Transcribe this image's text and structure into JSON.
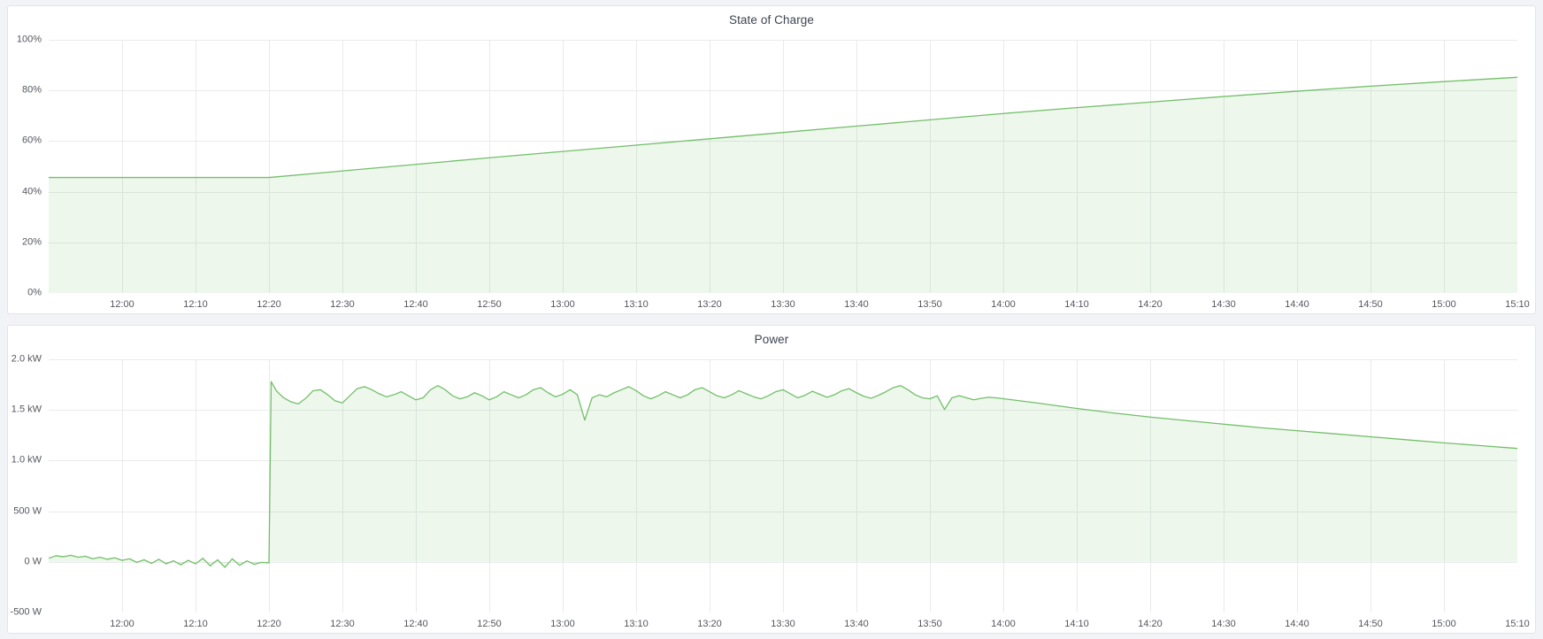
{
  "page": {
    "background_color": "#f1f3f6",
    "panel_background": "#ffffff",
    "accent_color": "#73bf69"
  },
  "chart_data": [
    {
      "type": "area",
      "title": "State of Charge",
      "xlabel": "",
      "ylabel": "",
      "unit": "percent",
      "grid": true,
      "legend_position": "none",
      "line_color": "#73bf69",
      "fill_color": "rgba(115,191,105,0.13)",
      "x_axis": {
        "start_time": "11:50",
        "end_time": "15:10",
        "unit": "minutes since 11:50"
      },
      "xlim": [
        0,
        200
      ],
      "ylim": [
        0,
        100
      ],
      "x_ticks": [
        {
          "minute": 10,
          "label": "12:00"
        },
        {
          "minute": 20,
          "label": "12:10"
        },
        {
          "minute": 30,
          "label": "12:20"
        },
        {
          "minute": 40,
          "label": "12:30"
        },
        {
          "minute": 50,
          "label": "12:40"
        },
        {
          "minute": 60,
          "label": "12:50"
        },
        {
          "minute": 70,
          "label": "13:00"
        },
        {
          "minute": 80,
          "label": "13:10"
        },
        {
          "minute": 90,
          "label": "13:20"
        },
        {
          "minute": 100,
          "label": "13:30"
        },
        {
          "minute": 110,
          "label": "13:40"
        },
        {
          "minute": 120,
          "label": "13:50"
        },
        {
          "minute": 130,
          "label": "14:00"
        },
        {
          "minute": 140,
          "label": "14:10"
        },
        {
          "minute": 150,
          "label": "14:20"
        },
        {
          "minute": 160,
          "label": "14:30"
        },
        {
          "minute": 170,
          "label": "14:40"
        },
        {
          "minute": 180,
          "label": "14:50"
        },
        {
          "minute": 190,
          "label": "15:00"
        },
        {
          "minute": 200,
          "label": "15:10"
        }
      ],
      "y_ticks": [
        {
          "value": 0,
          "label": "0%"
        },
        {
          "value": 20,
          "label": "20%"
        },
        {
          "value": 40,
          "label": "40%"
        },
        {
          "value": 60,
          "label": "60%"
        },
        {
          "value": 80,
          "label": "80%"
        },
        {
          "value": 100,
          "label": "100%"
        }
      ],
      "series": [
        {
          "name": "State of Charge",
          "points": [
            [
              0,
              45.6
            ],
            [
              30,
              45.6
            ],
            [
              40,
              48.2
            ],
            [
              50,
              50.8
            ],
            [
              60,
              53.4
            ],
            [
              70,
              55.9
            ],
            [
              80,
              58.4
            ],
            [
              90,
              60.9
            ],
            [
              100,
              63.4
            ],
            [
              110,
              65.9
            ],
            [
              120,
              68.4
            ],
            [
              130,
              70.9
            ],
            [
              140,
              73.2
            ],
            [
              150,
              75.4
            ],
            [
              160,
              77.6
            ],
            [
              170,
              79.7
            ],
            [
              180,
              81.7
            ],
            [
              190,
              83.5
            ],
            [
              200,
              85.2
            ]
          ]
        }
      ]
    },
    {
      "type": "area",
      "title": "Power",
      "xlabel": "",
      "ylabel": "",
      "unit": "watt",
      "grid": true,
      "legend_position": "none",
      "line_color": "#73bf69",
      "fill_color": "rgba(115,191,105,0.13)",
      "x_axis": {
        "start_time": "11:50",
        "end_time": "15:10",
        "unit": "minutes since 11:50"
      },
      "xlim": [
        0,
        200
      ],
      "ylim": [
        -500,
        2000
      ],
      "x_ticks": [
        {
          "minute": 10,
          "label": "12:00"
        },
        {
          "minute": 20,
          "label": "12:10"
        },
        {
          "minute": 30,
          "label": "12:20"
        },
        {
          "minute": 40,
          "label": "12:30"
        },
        {
          "minute": 50,
          "label": "12:40"
        },
        {
          "minute": 60,
          "label": "12:50"
        },
        {
          "minute": 70,
          "label": "13:00"
        },
        {
          "minute": 80,
          "label": "13:10"
        },
        {
          "minute": 90,
          "label": "13:20"
        },
        {
          "minute": 100,
          "label": "13:30"
        },
        {
          "minute": 110,
          "label": "13:40"
        },
        {
          "minute": 120,
          "label": "13:50"
        },
        {
          "minute": 130,
          "label": "14:00"
        },
        {
          "minute": 140,
          "label": "14:10"
        },
        {
          "minute": 150,
          "label": "14:20"
        },
        {
          "minute": 160,
          "label": "14:30"
        },
        {
          "minute": 170,
          "label": "14:40"
        },
        {
          "minute": 180,
          "label": "14:50"
        },
        {
          "minute": 190,
          "label": "15:00"
        },
        {
          "minute": 200,
          "label": "15:10"
        }
      ],
      "y_ticks": [
        {
          "value": -500,
          "label": "-500 W"
        },
        {
          "value": 0,
          "label": "0 W"
        },
        {
          "value": 500,
          "label": "500 W"
        },
        {
          "value": 1000,
          "label": "1.0 kW"
        },
        {
          "value": 1500,
          "label": "1.5 kW"
        },
        {
          "value": 2000,
          "label": "2.0 kW"
        }
      ],
      "series": [
        {
          "name": "Power",
          "points": [
            [
              0,
              35
            ],
            [
              1,
              60
            ],
            [
              2,
              50
            ],
            [
              3,
              65
            ],
            [
              4,
              45
            ],
            [
              5,
              55
            ],
            [
              6,
              30
            ],
            [
              7,
              45
            ],
            [
              8,
              25
            ],
            [
              9,
              40
            ],
            [
              10,
              15
            ],
            [
              11,
              30
            ],
            [
              12,
              -5
            ],
            [
              13,
              20
            ],
            [
              14,
              -15
            ],
            [
              15,
              25
            ],
            [
              16,
              -20
            ],
            [
              17,
              10
            ],
            [
              18,
              -30
            ],
            [
              19,
              15
            ],
            [
              20,
              -20
            ],
            [
              21,
              35
            ],
            [
              22,
              -40
            ],
            [
              23,
              20
            ],
            [
              24,
              -55
            ],
            [
              25,
              30
            ],
            [
              26,
              -35
            ],
            [
              27,
              10
            ],
            [
              28,
              -25
            ],
            [
              29,
              -5
            ],
            [
              30,
              -10
            ],
            [
              30.3,
              1780
            ],
            [
              31,
              1690
            ],
            [
              32,
              1620
            ],
            [
              33,
              1580
            ],
            [
              34,
              1560
            ],
            [
              35,
              1615
            ],
            [
              36,
              1690
            ],
            [
              37,
              1700
            ],
            [
              38,
              1650
            ],
            [
              39,
              1590
            ],
            [
              40,
              1570
            ],
            [
              41,
              1640
            ],
            [
              42,
              1710
            ],
            [
              43,
              1730
            ],
            [
              44,
              1700
            ],
            [
              45,
              1660
            ],
            [
              46,
              1630
            ],
            [
              47,
              1650
            ],
            [
              48,
              1680
            ],
            [
              49,
              1640
            ],
            [
              50,
              1600
            ],
            [
              51,
              1620
            ],
            [
              52,
              1700
            ],
            [
              53,
              1740
            ],
            [
              54,
              1700
            ],
            [
              55,
              1640
            ],
            [
              56,
              1610
            ],
            [
              57,
              1630
            ],
            [
              58,
              1670
            ],
            [
              59,
              1640
            ],
            [
              60,
              1600
            ],
            [
              61,
              1630
            ],
            [
              62,
              1680
            ],
            [
              63,
              1650
            ],
            [
              64,
              1620
            ],
            [
              65,
              1650
            ],
            [
              66,
              1700
            ],
            [
              67,
              1720
            ],
            [
              68,
              1670
            ],
            [
              69,
              1630
            ],
            [
              70,
              1655
            ],
            [
              71,
              1700
            ],
            [
              72,
              1650
            ],
            [
              73,
              1400
            ],
            [
              74,
              1620
            ],
            [
              75,
              1650
            ],
            [
              76,
              1630
            ],
            [
              77,
              1670
            ],
            [
              78,
              1700
            ],
            [
              79,
              1730
            ],
            [
              80,
              1690
            ],
            [
              81,
              1640
            ],
            [
              82,
              1610
            ],
            [
              83,
              1640
            ],
            [
              84,
              1680
            ],
            [
              85,
              1650
            ],
            [
              86,
              1620
            ],
            [
              87,
              1650
            ],
            [
              88,
              1700
            ],
            [
              89,
              1720
            ],
            [
              90,
              1680
            ],
            [
              91,
              1640
            ],
            [
              92,
              1620
            ],
            [
              93,
              1650
            ],
            [
              94,
              1690
            ],
            [
              95,
              1660
            ],
            [
              96,
              1630
            ],
            [
              97,
              1610
            ],
            [
              98,
              1640
            ],
            [
              99,
              1680
            ],
            [
              100,
              1700
            ],
            [
              101,
              1660
            ],
            [
              102,
              1620
            ],
            [
              103,
              1645
            ],
            [
              104,
              1685
            ],
            [
              105,
              1655
            ],
            [
              106,
              1625
            ],
            [
              107,
              1650
            ],
            [
              108,
              1690
            ],
            [
              109,
              1710
            ],
            [
              110,
              1670
            ],
            [
              111,
              1635
            ],
            [
              112,
              1615
            ],
            [
              113,
              1645
            ],
            [
              114,
              1680
            ],
            [
              115,
              1720
            ],
            [
              116,
              1740
            ],
            [
              117,
              1700
            ],
            [
              118,
              1650
            ],
            [
              119,
              1620
            ],
            [
              120,
              1610
            ],
            [
              121,
              1640
            ],
            [
              122,
              1505
            ],
            [
              123,
              1620
            ],
            [
              124,
              1640
            ],
            [
              125,
              1620
            ],
            [
              126,
              1600
            ],
            [
              127,
              1615
            ],
            [
              128,
              1625
            ],
            [
              129,
              1620
            ],
            [
              135,
              1565
            ],
            [
              140,
              1515
            ],
            [
              145,
              1470
            ],
            [
              150,
              1430
            ],
            [
              155,
              1395
            ],
            [
              160,
              1360
            ],
            [
              165,
              1325
            ],
            [
              170,
              1295
            ],
            [
              175,
              1265
            ],
            [
              180,
              1235
            ],
            [
              185,
              1205
            ],
            [
              190,
              1175
            ],
            [
              195,
              1148
            ],
            [
              200,
              1120
            ]
          ]
        }
      ]
    }
  ]
}
